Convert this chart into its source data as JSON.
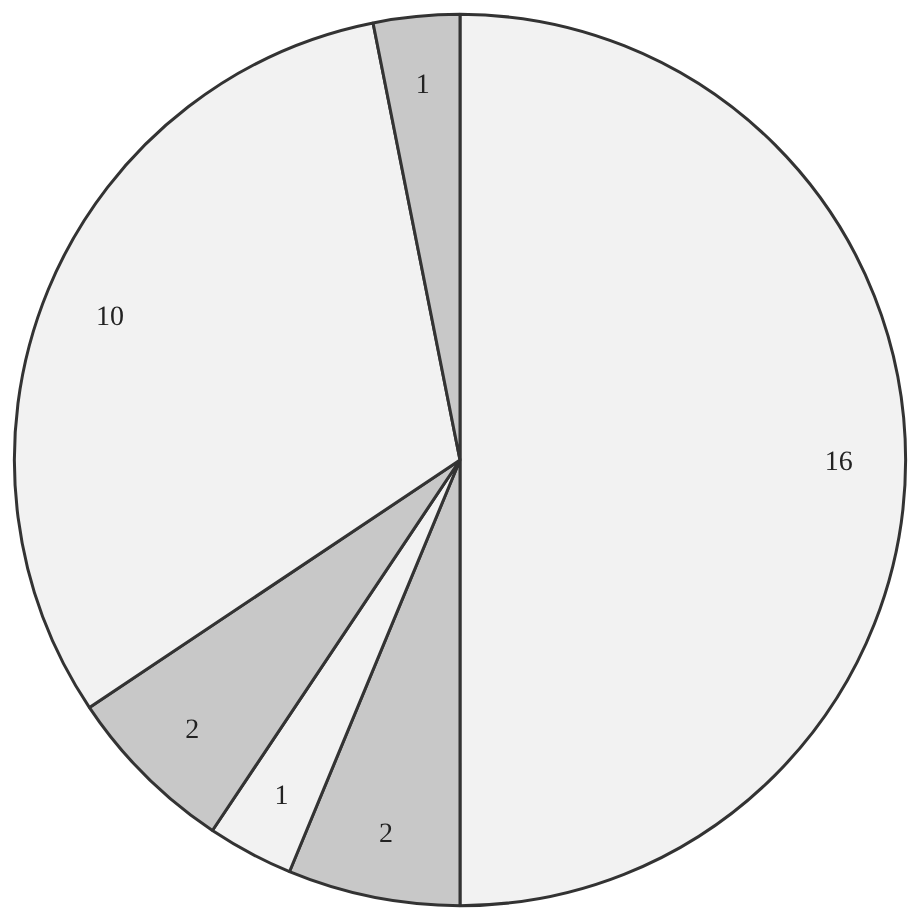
{
  "chart_data": {
    "type": "pie",
    "categories": [
      null,
      null,
      null,
      null,
      null,
      null
    ],
    "values": [
      16,
      2,
      1,
      2,
      10,
      1
    ],
    "colors": [
      "#f2f2f2",
      "#c8c8c8",
      "#f2f2f2",
      "#c8c8c8",
      "#f2f2f2",
      "#c8c8c8"
    ],
    "data_labels": true
  }
}
